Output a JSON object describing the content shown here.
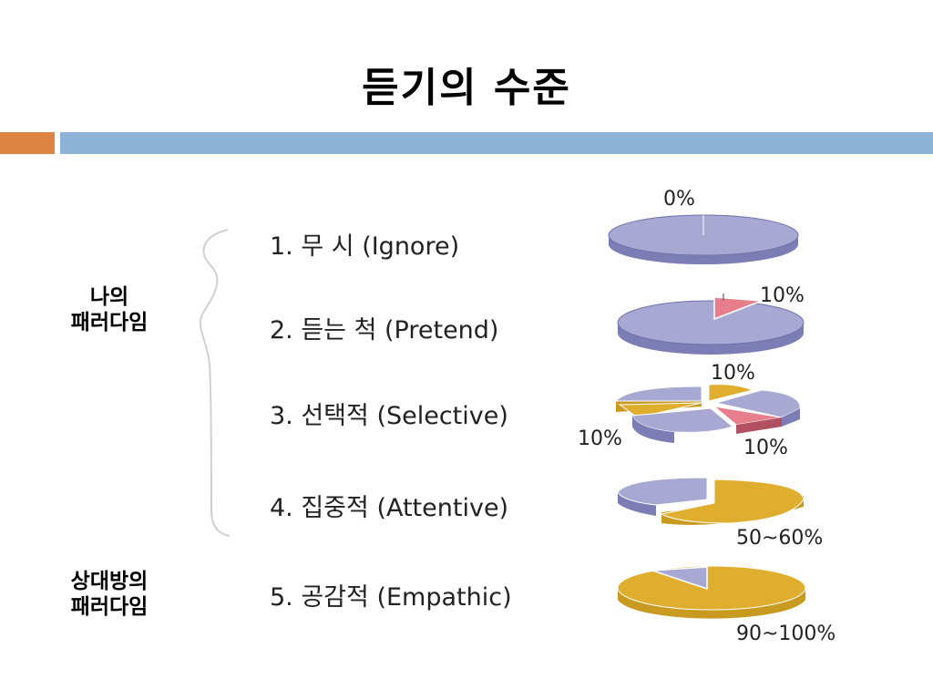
{
  "title": "듣기의 수준",
  "side_labels": {
    "mine": [
      "나의",
      "패러다임"
    ],
    "other": [
      "상대방의",
      "패러다임"
    ]
  },
  "levels": [
    {
      "label": "1. 무 시 (Ignore)",
      "percent_labels": [
        "0%"
      ]
    },
    {
      "label": "2. 듣는 척 (Pretend)",
      "percent_labels": [
        "10%"
      ]
    },
    {
      "label": "3. 선택적 (Selective)",
      "percent_labels": [
        "10%",
        "10%",
        "10%"
      ]
    },
    {
      "label": "4. 집중적 (Attentive)",
      "percent_labels": [
        "50~60%"
      ]
    },
    {
      "label": "5. 공감적 (Empathic)",
      "percent_labels": [
        "90~100%"
      ]
    }
  ],
  "colors": {
    "accent_orange": "#dd8444",
    "accent_blue": "#8db4d6",
    "pie_base": "#a7a9d3",
    "pie_base_side": "#7b7db4",
    "pie_highlight_pink": "#e67e8b",
    "pie_highlight_gold": "#e0ae2e",
    "brace": "#d0d0d0"
  },
  "pies": [
    {
      "level": 1,
      "slices": []
    },
    {
      "level": 2,
      "slices": [
        {
          "share": 0.1,
          "color": "pink"
        }
      ]
    },
    {
      "level": 3,
      "slices": [
        {
          "share": 0.1,
          "color": "gold"
        },
        {
          "share": 0.1,
          "color": "pink"
        },
        {
          "share": 0.1,
          "color": "gold"
        }
      ]
    },
    {
      "level": 4,
      "slices": [
        {
          "share": 0.55,
          "color": "gold"
        }
      ]
    },
    {
      "level": 5,
      "slices": [
        {
          "share": 0.95,
          "color": "gold"
        }
      ]
    }
  ]
}
